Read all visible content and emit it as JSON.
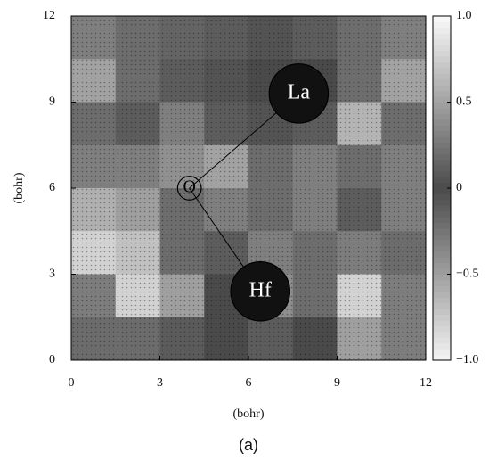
{
  "chart_data": {
    "type": "heatmap",
    "x_label": "(bohr)",
    "y_label": "(bohr)",
    "caption": "(a)",
    "xlim": [
      0,
      12
    ],
    "ylim": [
      0,
      12
    ],
    "xticks": [
      0,
      3,
      6,
      9,
      12
    ],
    "yticks": [
      0,
      3,
      6,
      9,
      12
    ],
    "zlim": [
      -1,
      1
    ],
    "zticks": [
      {
        "value": 1,
        "label": "1.0"
      },
      0.5,
      0,
      {
        "value": -0.5,
        "label": "−0.5"
      },
      {
        "value": -1,
        "label": "−1.0"
      }
    ],
    "colors": [
      "#f4f4f4",
      "#4a4a4a",
      "#fafafa"
    ],
    "z": [
      [
        0.3,
        0.2,
        0.15,
        0.1,
        0.05,
        0.1,
        0.2,
        0.3
      ],
      [
        0.5,
        0.2,
        0.1,
        0.05,
        0.0,
        0.0,
        0.2,
        0.5
      ],
      [
        0.2,
        0.1,
        0.3,
        0.1,
        0.05,
        0.1,
        0.6,
        0.2
      ],
      [
        0.3,
        0.3,
        0.4,
        0.5,
        0.2,
        0.3,
        0.2,
        0.3
      ],
      [
        -0.6,
        -0.5,
        0.2,
        0.3,
        0.2,
        0.3,
        0.1,
        0.3
      ],
      [
        -0.8,
        -0.7,
        -0.2,
        0.1,
        0.3,
        0.2,
        -0.3,
        -0.2
      ],
      [
        -0.3,
        -0.8,
        -0.5,
        0.0,
        -0.4,
        0.2,
        -0.8,
        -0.3
      ],
      [
        -0.2,
        -0.2,
        -0.1,
        0.0,
        0.1,
        0.0,
        -0.5,
        -0.3
      ]
    ],
    "atoms": [
      {
        "label": "La",
        "x": 7.7,
        "y": 9.3,
        "r": 1.0
      },
      {
        "label": "Hf",
        "x": 6.4,
        "y": 2.4,
        "r": 1.0
      },
      {
        "label": "O",
        "x": 4.0,
        "y": 6.0,
        "r": 0.4
      }
    ]
  }
}
